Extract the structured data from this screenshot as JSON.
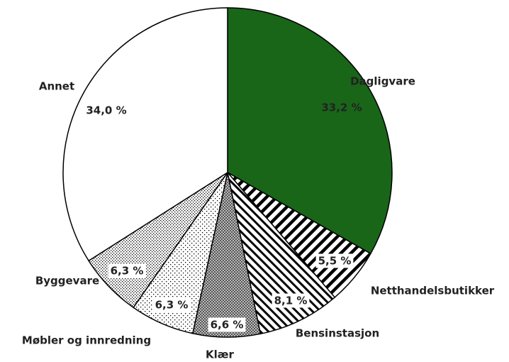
{
  "chart_data": {
    "type": "pie",
    "categories": [
      "Dagligvare",
      "Netthandelsbutikker",
      "Bensinstasjon",
      "Klær",
      "Møbler og innredning",
      "Byggevare",
      "Annet"
    ],
    "values": [
      33.2,
      5.5,
      8.1,
      6.6,
      6.3,
      6.3,
      34.0
    ],
    "value_labels": [
      "33,2 %",
      "5,5 %",
      "8,1 %",
      "6,6 %",
      "6,3 %",
      "6,3 %",
      "34,0 %"
    ],
    "colors": [
      "#196619",
      "#000000",
      "#000000",
      "#555555",
      "#000000",
      "#000000",
      "#ffffff"
    ]
  }
}
